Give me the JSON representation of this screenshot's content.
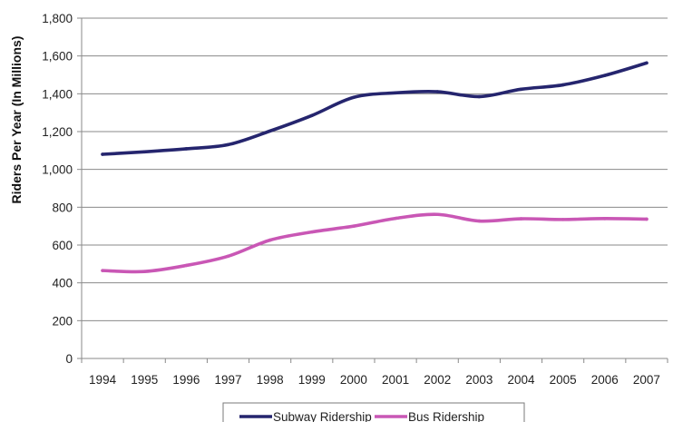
{
  "chart_data": {
    "type": "line",
    "x": [
      "1994",
      "1995",
      "1996",
      "1997",
      "1998",
      "1999",
      "2000",
      "2001",
      "2002",
      "2003",
      "2004",
      "2005",
      "2006",
      "2007"
    ],
    "series": [
      {
        "name": "Subway Ridership",
        "color": "#25256e",
        "values": [
          1080,
          1093,
          1109,
          1131,
          1203,
          1285,
          1381,
          1405,
          1411,
          1385,
          1424,
          1447,
          1497,
          1563
        ]
      },
      {
        "name": "Bus Ridership",
        "color": "#c957b5",
        "values": [
          465,
          460,
          492,
          541,
          626,
          669,
          700,
          741,
          762,
          727,
          739,
          735,
          740,
          737
        ]
      }
    ],
    "ylabel": "Riders Per Year (In Millions)",
    "xlabel": "",
    "title": "",
    "ylim": [
      0,
      1800
    ],
    "yticks": [
      0,
      200,
      400,
      600,
      800,
      1000,
      1200,
      1400,
      1600,
      1800
    ],
    "ytick_labels": [
      "0",
      "200",
      "400",
      "600",
      "800",
      "1,000",
      "1,200",
      "1,400",
      "1,600",
      "1,800"
    ],
    "grid": true,
    "legend_position": "bottom"
  }
}
